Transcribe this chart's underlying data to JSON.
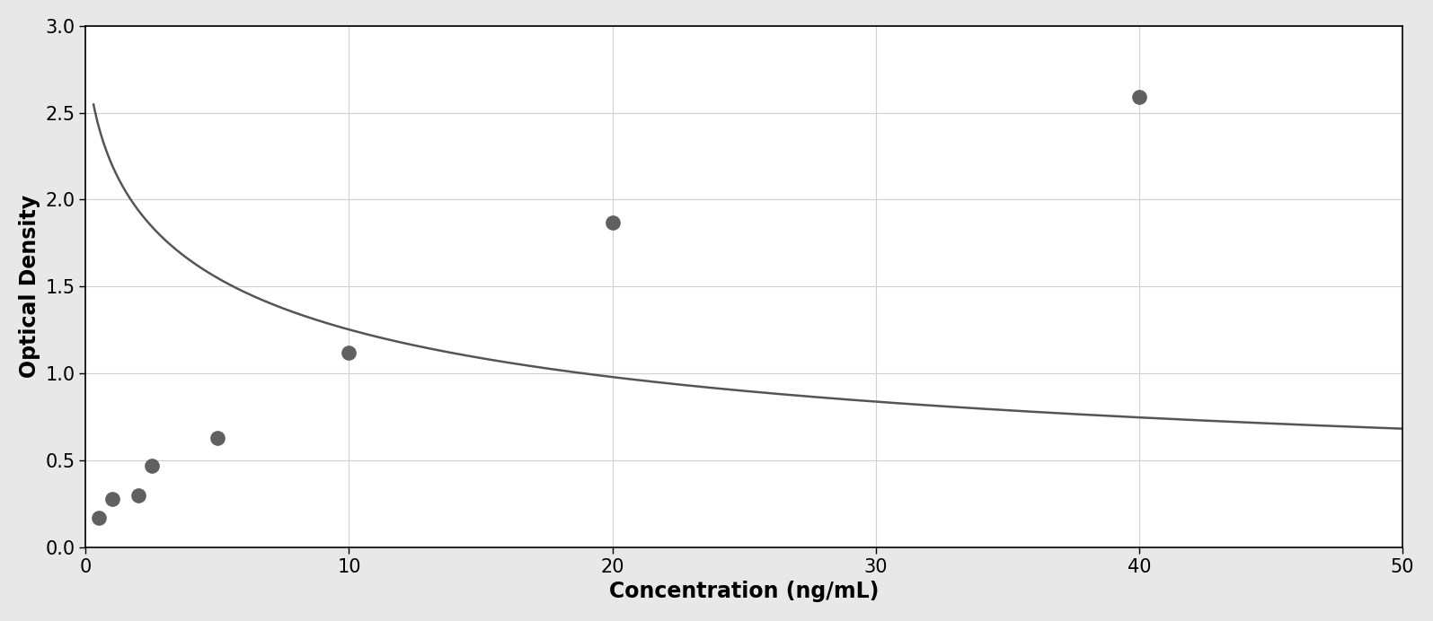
{
  "x_data": [
    0.5,
    1.0,
    2.0,
    2.5,
    5.0,
    10.0,
    20.0,
    40.0
  ],
  "y_data": [
    0.17,
    0.28,
    0.3,
    0.47,
    0.63,
    1.12,
    1.87,
    2.59
  ],
  "point_color": "#606060",
  "line_color": "#555555",
  "xlabel": "Concentration (ng/mL)",
  "ylabel": "Optical Density",
  "xlim": [
    0,
    50
  ],
  "ylim": [
    0,
    3
  ],
  "xticks": [
    0,
    10,
    20,
    30,
    40,
    50
  ],
  "yticks": [
    0,
    0.5,
    1.0,
    1.5,
    2.0,
    2.5,
    3.0
  ],
  "grid_color": "#d0d0d0",
  "plot_bg_color": "#ffffff",
  "fig_bg_color": "#e8e8e8",
  "border_color": "#000000",
  "xlabel_fontsize": 17,
  "ylabel_fontsize": 17,
  "tick_fontsize": 15,
  "marker_size": 11,
  "line_width": 1.8
}
